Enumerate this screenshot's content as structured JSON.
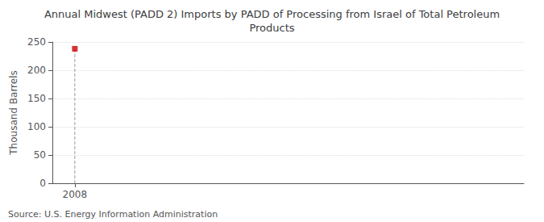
{
  "chart_data": {
    "type": "scatter",
    "title": "Annual Midwest (PADD 2) Imports by PADD of Processing from Israel of Total Petroleum\nProducts",
    "ylabel": "Thousand Barrels",
    "annotations": [
      "Source: U.S. Energy Information Administration"
    ],
    "x": [
      2008
    ],
    "values": [
      238
    ],
    "color": "#cc0000",
    "marker": "square",
    "xlim": [
      2007.4,
      2020.0
    ],
    "xticks": [
      2008
    ],
    "ylim": [
      0,
      250
    ],
    "yticks": [
      0,
      50,
      100,
      150,
      200,
      250
    ],
    "grid": true
  }
}
